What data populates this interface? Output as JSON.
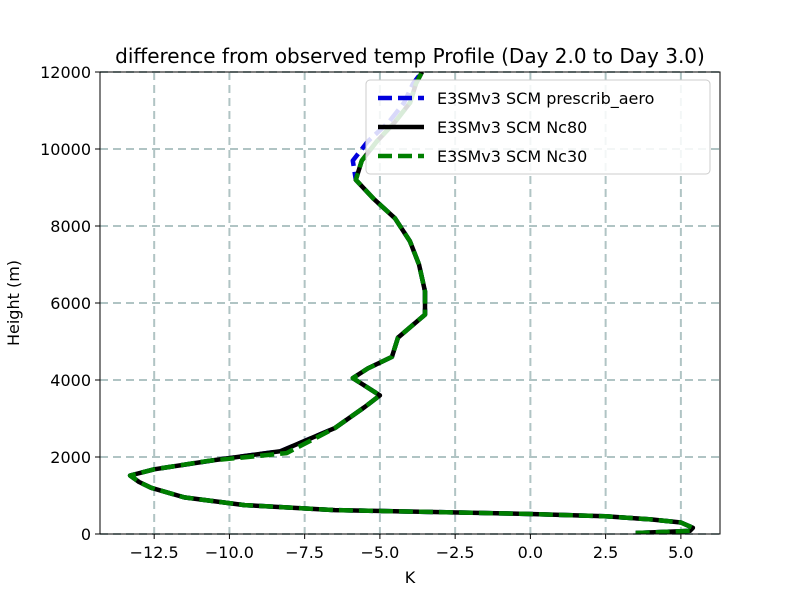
{
  "chart_data": {
    "type": "line",
    "title": "difference from observed temp Profile (Day 2.0 to Day 3.0)",
    "xlabel": "K",
    "ylabel": "Height (m)",
    "xlim": [
      -14.3,
      6.3
    ],
    "ylim": [
      0,
      12000
    ],
    "xticks": [
      -12.5,
      -10.0,
      -7.5,
      -5.0,
      -2.5,
      0.0,
      2.5,
      5.0
    ],
    "xtick_labels": [
      "−12.5",
      "−10.0",
      "−7.5",
      "−5.0",
      "−2.5",
      "0.0",
      "2.5",
      "5.0"
    ],
    "yticks": [
      0,
      2000,
      4000,
      6000,
      8000,
      10000,
      12000
    ],
    "ytick_labels": [
      "0",
      "2000",
      "4000",
      "6000",
      "8000",
      "10000",
      "12000"
    ],
    "grid": true,
    "legend_position": "top-right",
    "series": [
      {
        "name": "E3SMv3 SCM prescrib_aero",
        "color": "#0000dd",
        "style": "dashed",
        "points": [
          [
            3.5,
            25
          ],
          [
            5.3,
            80
          ],
          [
            5.4,
            160
          ],
          [
            5.0,
            300
          ],
          [
            4.0,
            380
          ],
          [
            2.5,
            460
          ],
          [
            0.0,
            520
          ],
          [
            -3.0,
            570
          ],
          [
            -6.5,
            620
          ],
          [
            -9.5,
            750
          ],
          [
            -11.5,
            950
          ],
          [
            -12.6,
            1200
          ],
          [
            -13.0,
            1350
          ],
          [
            -13.3,
            1520
          ],
          [
            -12.5,
            1680
          ],
          [
            -10.5,
            1920
          ],
          [
            -8.3,
            2150
          ],
          [
            -6.5,
            2750
          ],
          [
            -5.5,
            3300
          ],
          [
            -5.0,
            3600
          ],
          [
            -5.9,
            4050
          ],
          [
            -5.4,
            4300
          ],
          [
            -4.6,
            4600
          ],
          [
            -4.4,
            5100
          ],
          [
            -3.5,
            5700
          ],
          [
            -3.5,
            6300
          ],
          [
            -3.7,
            7000
          ],
          [
            -4.0,
            7600
          ],
          [
            -4.5,
            8200
          ],
          [
            -5.2,
            8700
          ],
          [
            -5.8,
            9200
          ],
          [
            -5.9,
            9700
          ],
          [
            -5.4,
            10200
          ],
          [
            -4.7,
            10700
          ],
          [
            -4.2,
            11200
          ],
          [
            -3.9,
            11700
          ],
          [
            -3.6,
            12000
          ]
        ]
      },
      {
        "name": "E3SMv3 SCM Nc80",
        "color": "#000000",
        "style": "solid",
        "points": [
          [
            3.5,
            25
          ],
          [
            5.3,
            80
          ],
          [
            5.4,
            160
          ],
          [
            5.0,
            300
          ],
          [
            4.0,
            380
          ],
          [
            2.5,
            460
          ],
          [
            0.0,
            520
          ],
          [
            -3.0,
            570
          ],
          [
            -6.5,
            620
          ],
          [
            -9.5,
            750
          ],
          [
            -11.5,
            950
          ],
          [
            -12.6,
            1200
          ],
          [
            -13.0,
            1350
          ],
          [
            -13.3,
            1520
          ],
          [
            -12.5,
            1680
          ],
          [
            -10.5,
            1920
          ],
          [
            -8.3,
            2150
          ],
          [
            -6.5,
            2750
          ],
          [
            -5.5,
            3300
          ],
          [
            -5.0,
            3600
          ],
          [
            -5.9,
            4050
          ],
          [
            -5.4,
            4300
          ],
          [
            -4.6,
            4600
          ],
          [
            -4.4,
            5100
          ],
          [
            -3.5,
            5700
          ],
          [
            -3.5,
            6300
          ],
          [
            -3.7,
            7000
          ],
          [
            -4.0,
            7600
          ],
          [
            -4.5,
            8200
          ],
          [
            -5.2,
            8700
          ],
          [
            -5.8,
            9200
          ],
          [
            -5.6,
            9700
          ],
          [
            -5.1,
            10200
          ],
          [
            -4.5,
            10700
          ],
          [
            -4.0,
            11200
          ],
          [
            -3.8,
            11700
          ],
          [
            -3.6,
            12000
          ]
        ]
      },
      {
        "name": "E3SMv3 SCM Nc30",
        "color": "#007f00",
        "style": "dashed",
        "points": [
          [
            3.5,
            25
          ],
          [
            5.3,
            80
          ],
          [
            5.4,
            160
          ],
          [
            5.0,
            300
          ],
          [
            4.0,
            380
          ],
          [
            2.5,
            460
          ],
          [
            0.0,
            520
          ],
          [
            -3.0,
            570
          ],
          [
            -6.5,
            620
          ],
          [
            -9.5,
            750
          ],
          [
            -11.5,
            950
          ],
          [
            -12.6,
            1200
          ],
          [
            -13.0,
            1350
          ],
          [
            -13.3,
            1520
          ],
          [
            -12.5,
            1680
          ],
          [
            -10.7,
            1900
          ],
          [
            -8.1,
            2100
          ],
          [
            -6.5,
            2750
          ],
          [
            -5.5,
            3300
          ],
          [
            -5.0,
            3600
          ],
          [
            -5.9,
            4050
          ],
          [
            -5.4,
            4300
          ],
          [
            -4.6,
            4600
          ],
          [
            -4.4,
            5100
          ],
          [
            -3.5,
            5700
          ],
          [
            -3.5,
            6300
          ],
          [
            -3.7,
            7000
          ],
          [
            -4.0,
            7600
          ],
          [
            -4.5,
            8200
          ],
          [
            -5.2,
            8700
          ],
          [
            -5.8,
            9200
          ],
          [
            -5.6,
            9700
          ],
          [
            -5.1,
            10200
          ],
          [
            -4.5,
            10700
          ],
          [
            -4.0,
            11200
          ],
          [
            -3.8,
            11700
          ],
          [
            -3.6,
            12000
          ]
        ]
      }
    ]
  }
}
